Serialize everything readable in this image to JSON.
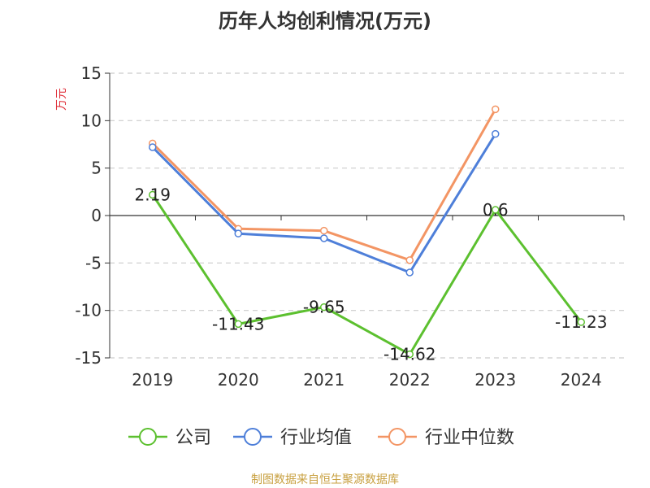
{
  "chart_data": {
    "type": "line",
    "title": "历年人均创利情况(万元)",
    "ylabel": "万元",
    "xlabel": "",
    "categories": [
      "2019",
      "2020",
      "2021",
      "2022",
      "2023",
      "2024"
    ],
    "ylim": [
      -15,
      15
    ],
    "yticks": [
      15,
      10,
      5,
      0,
      -5,
      -10,
      -15
    ],
    "grid": true,
    "legend_position": "bottom",
    "series": [
      {
        "name": "公司",
        "color": "#5cc02f",
        "values": [
          2.19,
          -11.43,
          -9.65,
          -14.62,
          0.6,
          -11.23
        ],
        "labels": [
          "2.19",
          "-11.43",
          "-9.65",
          "-14.62",
          "0.6",
          "-11.23"
        ],
        "show_labels": true
      },
      {
        "name": "行业均值",
        "color": "#4e7fd9",
        "values": [
          7.2,
          -1.9,
          -2.4,
          -6.0,
          8.6,
          null
        ],
        "show_labels": false
      },
      {
        "name": "行业中位数",
        "color": "#f39564",
        "values": [
          7.6,
          -1.4,
          -1.6,
          -4.7,
          11.2,
          null
        ],
        "show_labels": false
      }
    ]
  },
  "footer": {
    "source": "制图数据来自恒生聚源数据库"
  }
}
